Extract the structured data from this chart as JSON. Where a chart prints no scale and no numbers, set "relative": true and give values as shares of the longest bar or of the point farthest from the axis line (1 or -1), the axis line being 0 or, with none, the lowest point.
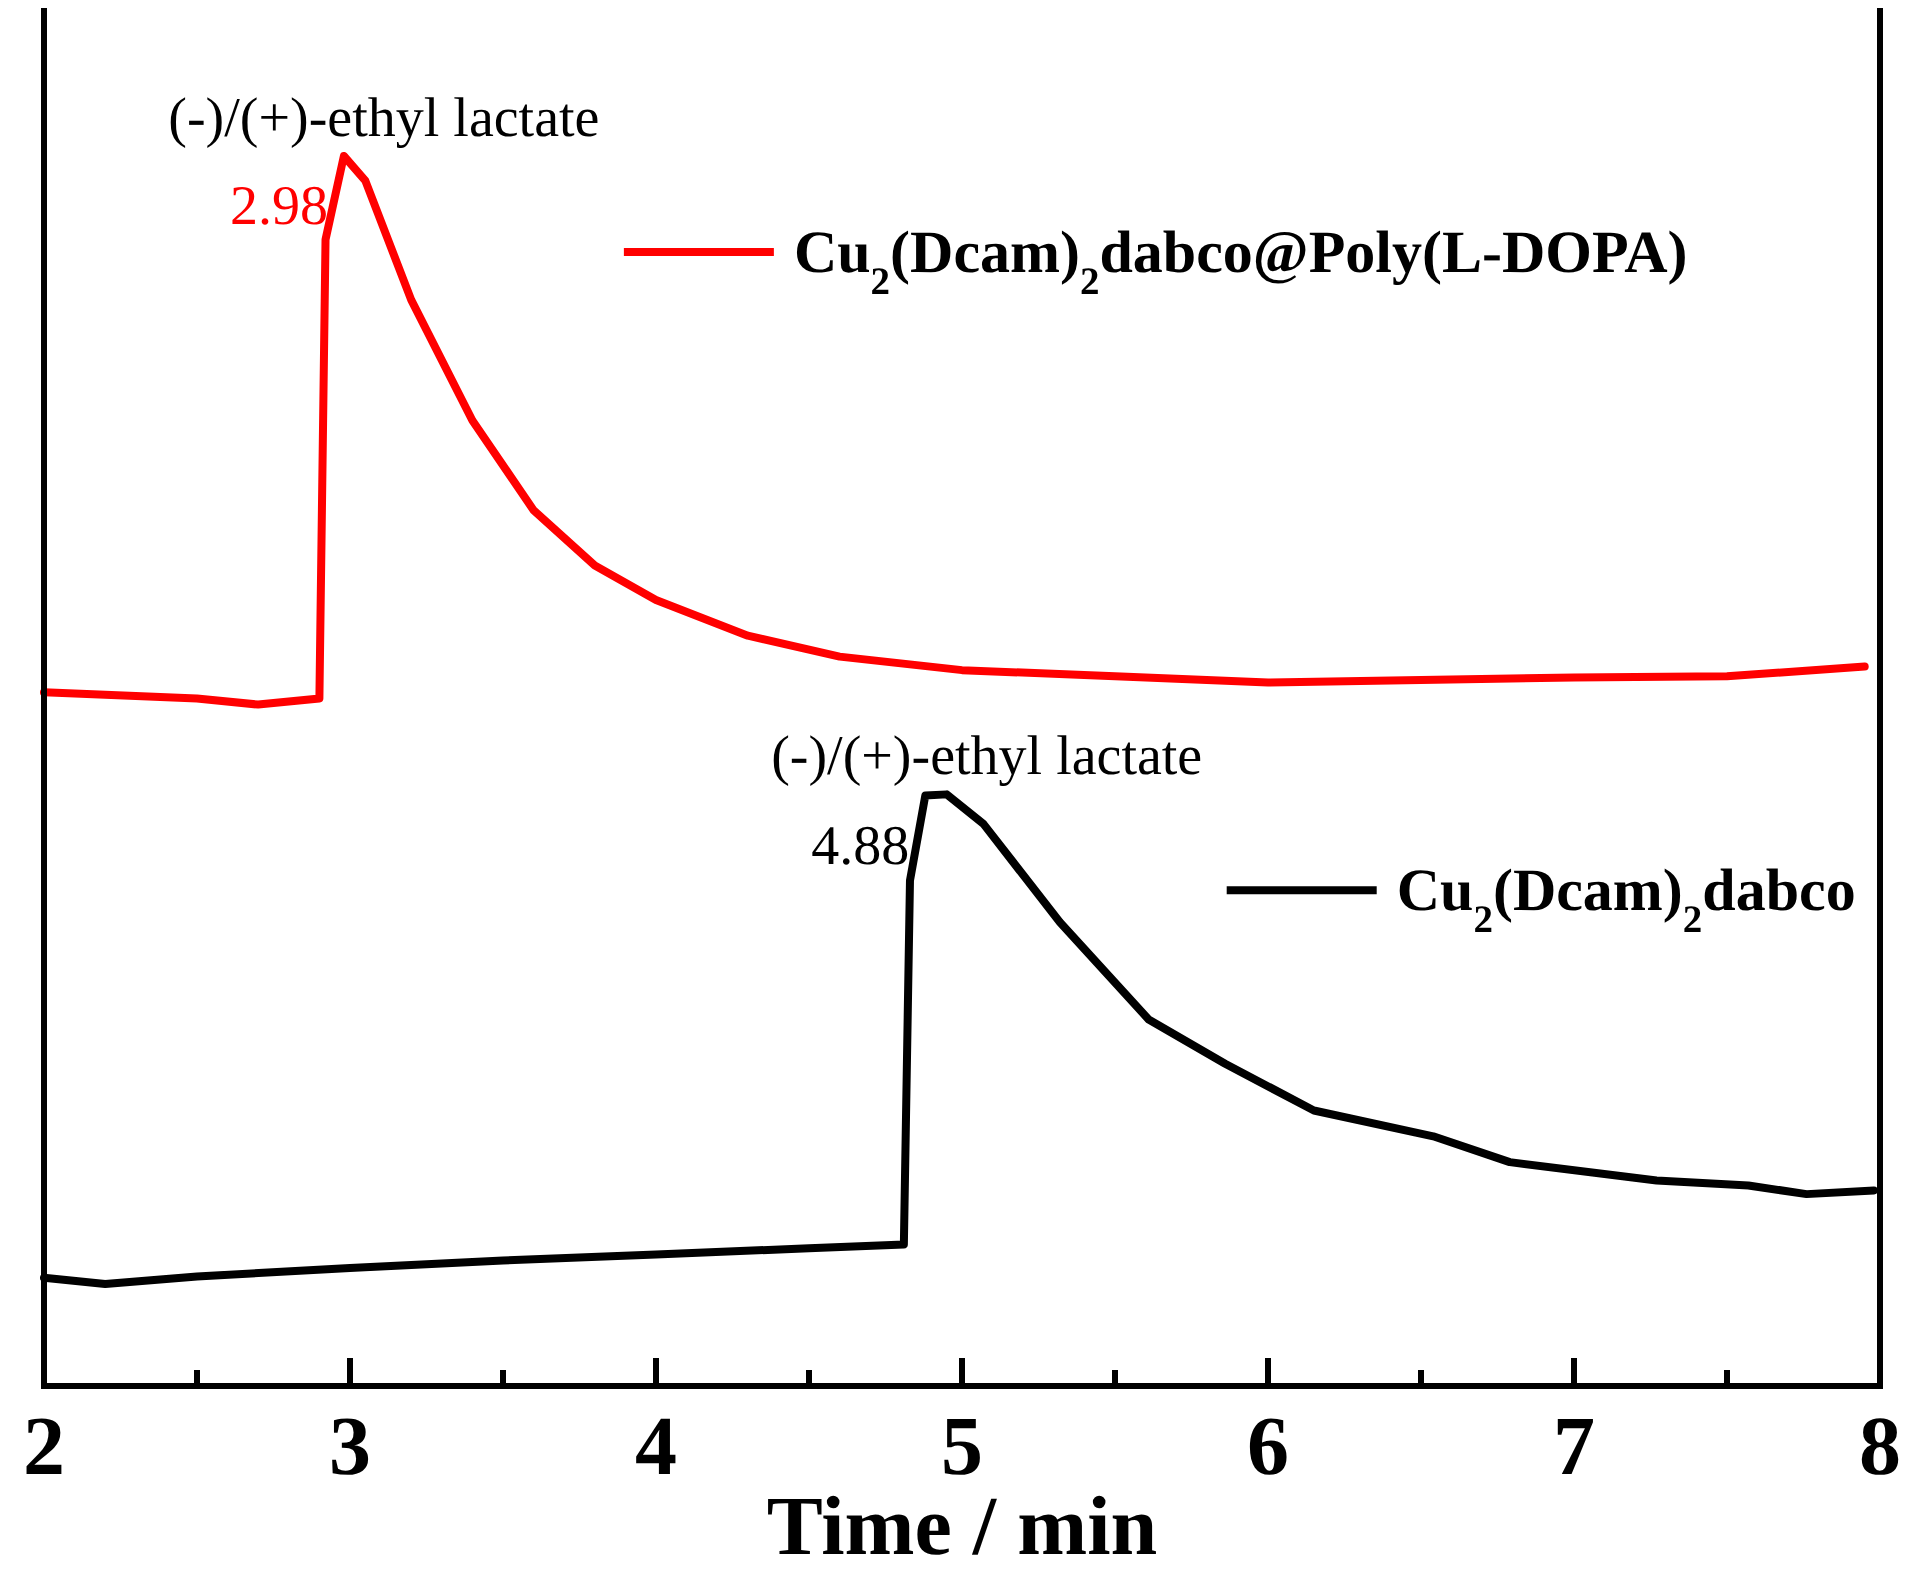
{
  "chart_data": {
    "type": "line",
    "xlabel": "Time / min",
    "relative": true,
    "legend": "right",
    "line_style": "solid",
    "xlim": [
      2,
      8
    ],
    "xticks": [
      2,
      {
        "value": 2.5,
        "label": null
      },
      3,
      {
        "value": 3.5,
        "label": null
      },
      4,
      {
        "value": 4.5,
        "label": null
      },
      5,
      {
        "value": 5.5,
        "label": null
      },
      6,
      {
        "value": 6.5,
        "label": null
      },
      7,
      {
        "value": 7.5,
        "label": null
      },
      8
    ],
    "series": [
      {
        "name": "Cu$_{2}$(Dcam)$_{2}$dabco@Poly(L-DOPA)",
        "color": "#ff0000",
        "x": [
          2,
          2.5,
          2.7,
          2.9,
          2.92,
          2.98,
          3.05,
          3.2,
          3.4,
          3.6,
          3.8,
          4,
          4.3,
          4.6,
          5,
          5.5,
          6,
          6.5,
          7,
          7.5,
          7.95
        ],
        "values": [
          0.564,
          0.559,
          0.554,
          0.559,
          0.932,
          1,
          0.98,
          0.883,
          0.785,
          0.712,
          0.667,
          0.639,
          0.61,
          0.593,
          0.582,
          0.577,
          0.572,
          0.574,
          0.576,
          0.577,
          0.585
        ]
      },
      {
        "name": "Cu$_{2}$(Dcam)$_{2}$dabco",
        "color": "#000000",
        "x": [
          2,
          2.2,
          2.5,
          3,
          3.5,
          4,
          4.5,
          4.81,
          4.83,
          4.88,
          4.95,
          5.07,
          5.32,
          5.61,
          5.86,
          6.15,
          6.54,
          6.79,
          7.27,
          7.57,
          7.76,
          7.98
        ],
        "values": [
          0.088,
          0.083,
          0.089,
          0.096,
          0.102,
          0.107,
          0.112,
          0.115,
          0.411,
          0.48,
          0.481,
          0.457,
          0.377,
          0.298,
          0.262,
          0.224,
          0.203,
          0.182,
          0.167,
          0.163,
          0.156,
          0.159
        ]
      }
    ],
    "annotations": [
      "(-)/(+)-ethyl lactate",
      {
        "text": "2.98",
        "x": 2.98,
        "y": 1
      },
      "(-)/(+)-ethyl lactate",
      {
        "text": "4.88",
        "x": 4.88,
        "y": 0.48
      }
    ]
  }
}
